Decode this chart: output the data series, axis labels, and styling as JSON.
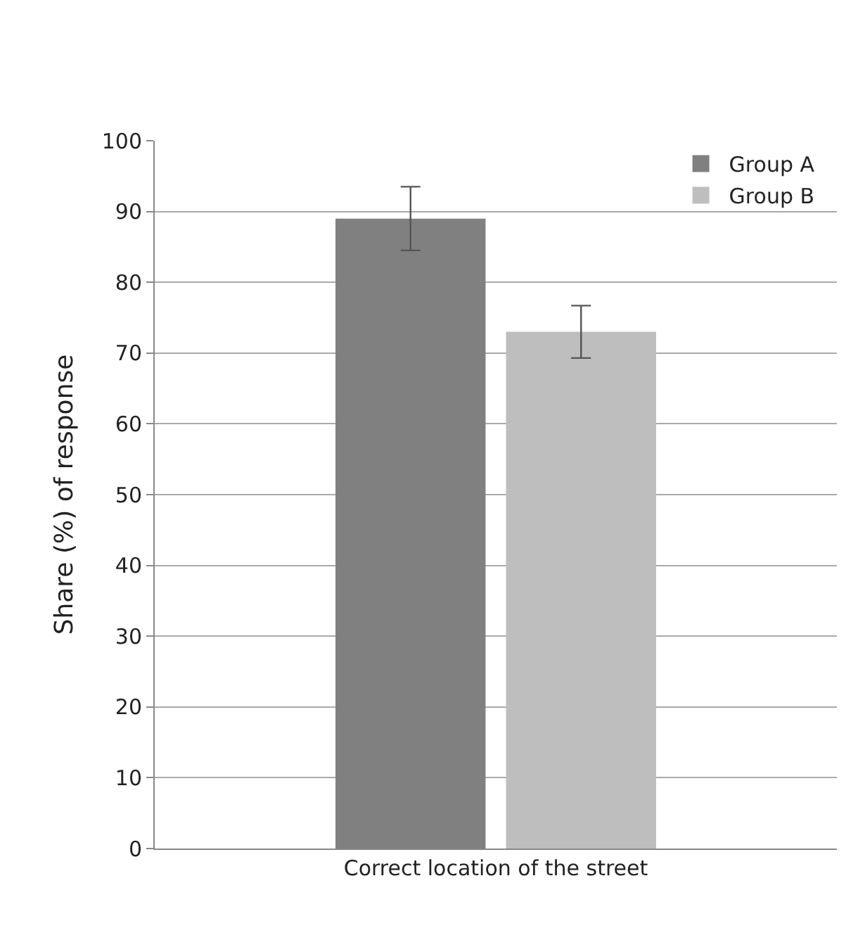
{
  "chart_data": {
    "type": "bar",
    "ylabel": "Share (%) of response",
    "categories": [
      "Correct location of the street"
    ],
    "series": [
      {
        "name": "Group A",
        "color": "#808080",
        "values": [
          89
        ],
        "errors": [
          4.5
        ]
      },
      {
        "name": "Group B",
        "color": "#bebebe",
        "values": [
          73
        ],
        "errors": [
          3.7
        ]
      }
    ],
    "ylim": [
      0,
      100
    ],
    "yticks": [
      0,
      10,
      20,
      30,
      40,
      50,
      60,
      70,
      80,
      90,
      100
    ],
    "grid": "y",
    "legend": "top right"
  }
}
